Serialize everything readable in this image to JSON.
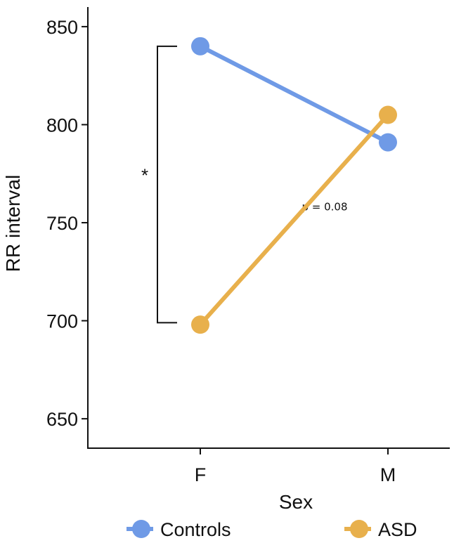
{
  "chart_data": {
    "type": "line",
    "xlabel": "Sex",
    "ylabel": "RR interval",
    "categories": [
      "F",
      "M"
    ],
    "ylim": [
      635,
      860
    ],
    "yticks": [
      650,
      700,
      750,
      800,
      850
    ],
    "ytick_labels": [
      "650",
      "700",
      "750",
      "800",
      "850"
    ],
    "series": [
      {
        "name": "Controls",
        "color": "#6f9ae6",
        "values": [
          840,
          791
        ]
      },
      {
        "name": "ASD",
        "color": "#e8b04c",
        "values": [
          698,
          805
        ]
      }
    ],
    "annotations": {
      "bracket": {
        "category": "F",
        "from": 840,
        "to": 699,
        "label": "*"
      },
      "p_value": {
        "label": "p = 0.08",
        "y": 758
      }
    },
    "legend": {
      "position": "bottom"
    },
    "grid": false
  }
}
